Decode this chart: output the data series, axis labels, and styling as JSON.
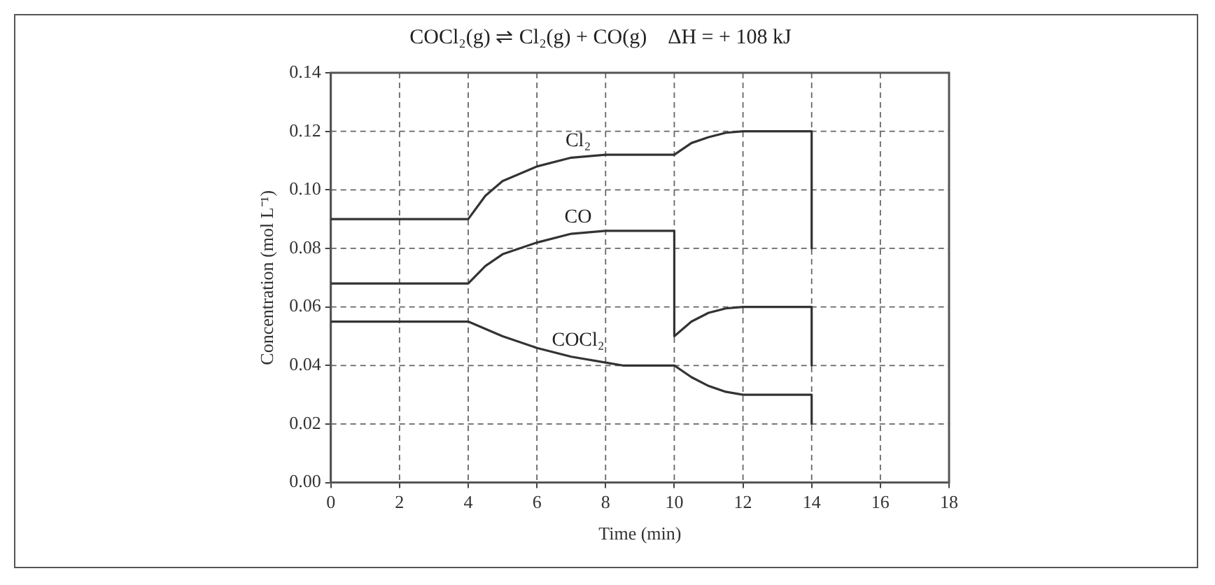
{
  "chart_data": {
    "type": "line",
    "title": "COCl₂(g) ⇌ Cl₂(g) + CO(g)    ΔH = + 108 kJ",
    "xlabel": "Time (min)",
    "ylabel": "Concentration (mol L⁻¹)",
    "series": [
      {
        "name": "Cl₂",
        "color": "#333333",
        "x": [
          0,
          4,
          4.5,
          5,
          6,
          7,
          8,
          10,
          10.5,
          11,
          11.5,
          12,
          14,
          14
        ],
        "values": [
          0.09,
          0.09,
          0.098,
          0.103,
          0.108,
          0.111,
          0.112,
          0.112,
          0.116,
          0.118,
          0.1195,
          0.12,
          0.12,
          0.08
        ]
      },
      {
        "name": "CO",
        "color": "#333333",
        "x": [
          0,
          4,
          4.5,
          5,
          6,
          7,
          8,
          10,
          10,
          10.5,
          11,
          11.5,
          12,
          14,
          14
        ],
        "values": [
          0.068,
          0.068,
          0.074,
          0.078,
          0.082,
          0.085,
          0.086,
          0.086,
          0.05,
          0.055,
          0.058,
          0.0595,
          0.06,
          0.06,
          0.04
        ]
      },
      {
        "name": "COCl₂",
        "color": "#333333",
        "x": [
          0,
          4,
          5,
          6,
          7,
          8,
          8.5,
          10,
          10.5,
          11,
          11.5,
          12,
          14,
          14
        ],
        "values": [
          0.055,
          0.055,
          0.05,
          0.046,
          0.043,
          0.041,
          0.04,
          0.04,
          0.036,
          0.033,
          0.031,
          0.03,
          0.03,
          0.02
        ]
      }
    ],
    "xlim": [
      0,
      18
    ],
    "xticks": [
      0,
      2,
      4,
      6,
      8,
      10,
      12,
      14,
      16,
      18
    ],
    "ylim": [
      0,
      0.14
    ],
    "yticks": [
      {
        "value": 0,
        "label": "0.00"
      },
      {
        "value": 0.02,
        "label": "0.02"
      },
      {
        "value": 0.04,
        "label": "0.04"
      },
      {
        "value": 0.06,
        "label": "0.06"
      },
      {
        "value": 0.08,
        "label": "0.08"
      },
      {
        "value": 0.1,
        "label": "0.10"
      },
      {
        "value": 0.12,
        "label": "0.12"
      },
      {
        "value": 0.14,
        "label": "0.14"
      }
    ],
    "grid": true,
    "legend": false,
    "marker": "none",
    "line_style": "solid"
  }
}
